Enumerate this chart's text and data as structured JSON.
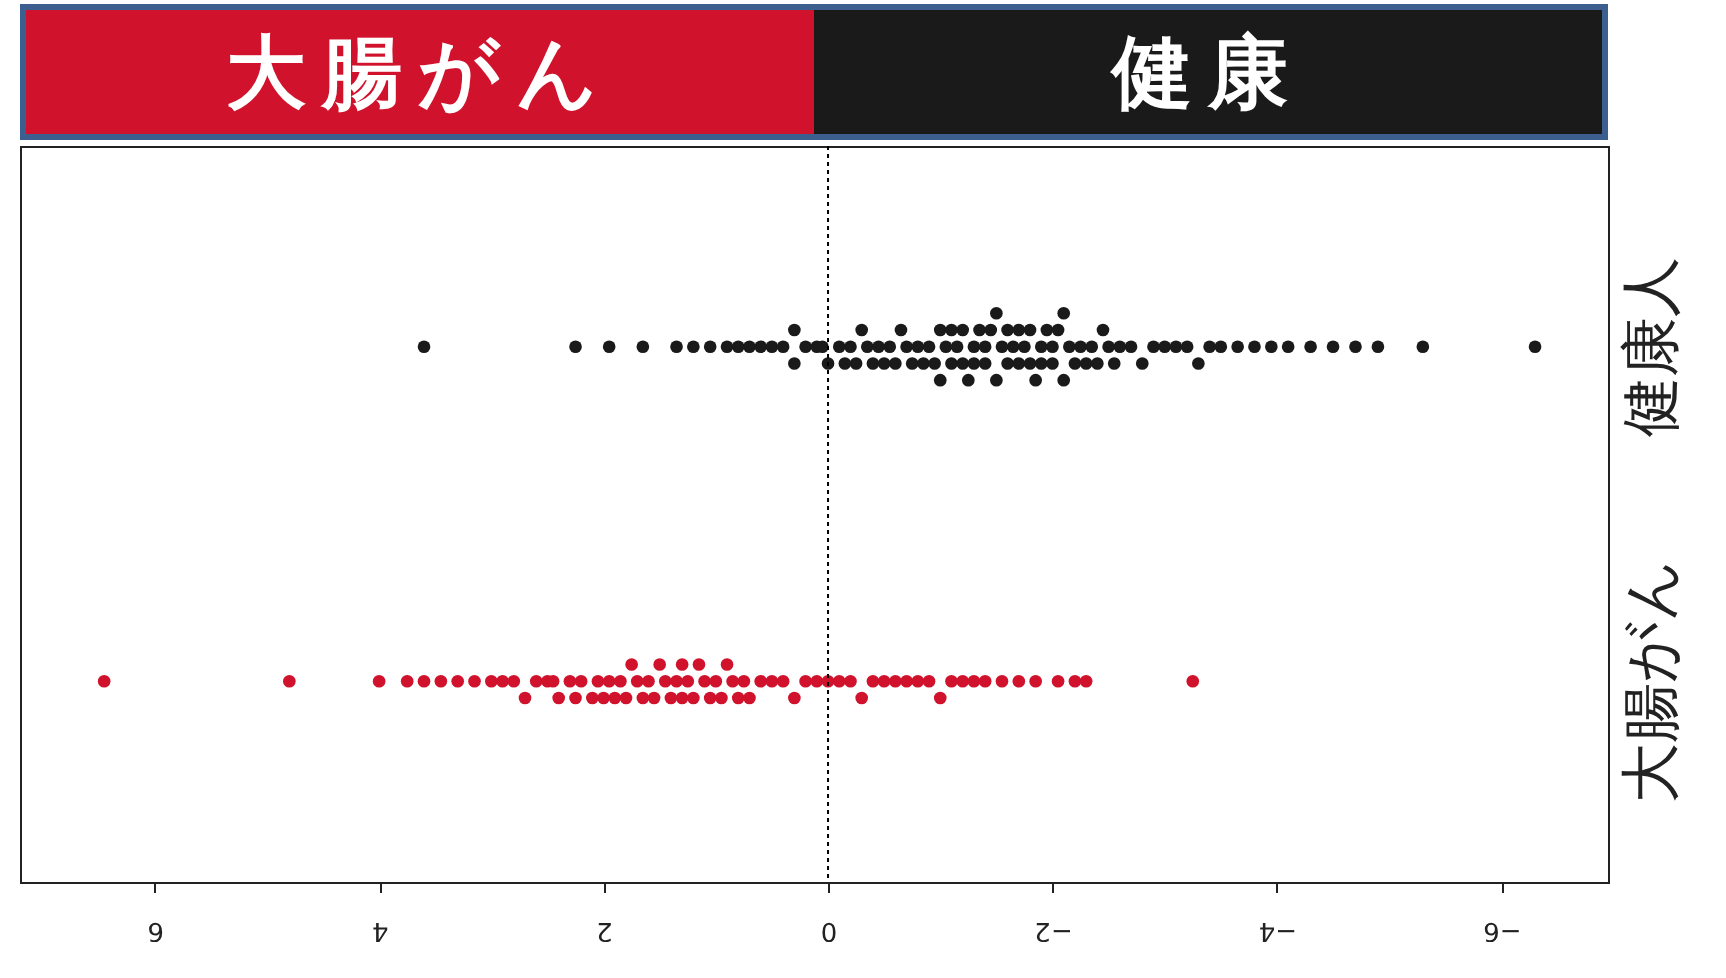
{
  "chart_data": {
    "type": "scatter",
    "orientation": "horizontal",
    "annotations": [
      "大腸がん",
      "健康"
    ],
    "categories": [
      "健康人",
      "大腸がん"
    ],
    "xlim": [
      7.2,
      -6.95
    ],
    "xticks": [
      6,
      4,
      2,
      0,
      -2,
      -4,
      -6
    ],
    "grid": false,
    "legend": false,
    "marker": "circle",
    "ref_lines": [
      {
        "axis": "x",
        "value": 0,
        "line_style": "dotted",
        "color": "#000000"
      }
    ],
    "series": [
      {
        "color": "#1a1a1a",
        "x": [
          "健康人",
          "健康人",
          "健康人",
          "健康人",
          "健康人",
          "健康人",
          "健康人",
          "健康人",
          "健康人",
          "健康人",
          "健康人",
          "健康人",
          "健康人",
          "健康人",
          "健康人",
          "健康人",
          "健康人",
          "健康人",
          "健康人",
          "健康人",
          "健康人",
          "健康人",
          "健康人",
          "健康人",
          "健康人",
          "健康人",
          "健康人",
          "健康人",
          "健康人",
          "健康人",
          "健康人",
          "健康人",
          "健康人",
          "健康人",
          "健康人",
          "健康人",
          "健康人",
          "健康人",
          "健康人",
          "健康人",
          "健康人",
          "健康人",
          "健康人",
          "健康人",
          "健康人",
          "健康人",
          "健康人",
          "健康人",
          "健康人",
          "健康人",
          "健康人",
          "健康人",
          "健康人",
          "健康人",
          "健康人",
          "健康人",
          "健康人",
          "健康人",
          "健康人",
          "健康人",
          "健康人",
          "健康人",
          "健康人",
          "健康人",
          "健康人",
          "健康人",
          "健康人",
          "健康人",
          "健康人",
          "健康人",
          "健康人",
          "健康人",
          "健康人",
          "健康人",
          "健康人",
          "健康人",
          "健康人",
          "健康人",
          "健康人",
          "健康人",
          "健康人",
          "健康人",
          "健康人",
          "健康人",
          "健康人",
          "健康人",
          "健康人",
          "健康人",
          "健康人",
          "健康人",
          "健康人",
          "健康人",
          "健康人",
          "健康人",
          "健康人",
          "健康人",
          "健康人",
          "健康人",
          "健康人",
          "健康人",
          "健康人"
        ],
        "values": [
          3.6,
          2.25,
          1.95,
          1.65,
          1.35,
          1.2,
          1.05,
          0.9,
          0.8,
          0.7,
          0.6,
          0.5,
          0.4,
          0.3,
          0.3,
          0.2,
          0.1,
          0.05,
          0.0,
          -0.1,
          -0.15,
          -0.2,
          -0.25,
          -0.3,
          -0.35,
          -0.4,
          -0.45,
          -0.5,
          -0.55,
          -0.6,
          -0.65,
          -0.7,
          -0.75,
          -0.8,
          -0.85,
          -0.9,
          -0.95,
          -1.0,
          -1.0,
          -1.05,
          -1.1,
          -1.1,
          -1.15,
          -1.2,
          -1.2,
          -1.25,
          -1.3,
          -1.3,
          -1.35,
          -1.4,
          -1.4,
          -1.45,
          -1.5,
          -1.5,
          -1.55,
          -1.6,
          -1.6,
          -1.65,
          -1.7,
          -1.7,
          -1.75,
          -1.8,
          -1.8,
          -1.85,
          -1.9,
          -1.9,
          -1.95,
          -2.0,
          -2.0,
          -2.05,
          -2.1,
          -2.1,
          -2.15,
          -2.2,
          -2.25,
          -2.3,
          -2.35,
          -2.4,
          -2.45,
          -2.5,
          -2.55,
          -2.6,
          -2.7,
          -2.8,
          -2.9,
          -3.0,
          -3.1,
          -3.2,
          -3.3,
          -3.4,
          -3.5,
          -3.65,
          -3.8,
          -3.95,
          -4.1,
          -4.3,
          -4.5,
          -4.7,
          -4.9,
          -5.3,
          -6.3
        ]
      },
      {
        "color": "#d0122d",
        "x": [
          "大腸がん",
          "大腸がん",
          "大腸がん",
          "大腸がん",
          "大腸がん",
          "大腸がん",
          "大腸がん",
          "大腸がん",
          "大腸がん",
          "大腸がん",
          "大腸がん",
          "大腸がん",
          "大腸がん",
          "大腸がん",
          "大腸がん",
          "大腸がん",
          "大腸がん",
          "大腸がん",
          "大腸がん",
          "大腸がん",
          "大腸がん",
          "大腸がん",
          "大腸がん",
          "大腸がん",
          "大腸がん",
          "大腸がん",
          "大腸がん",
          "大腸がん",
          "大腸がん",
          "大腸がん",
          "大腸がん",
          "大腸がん",
          "大腸がん",
          "大腸がん",
          "大腸がん",
          "大腸がん",
          "大腸がん",
          "大腸がん",
          "大腸がん",
          "大腸がん",
          "大腸がん",
          "大腸がん",
          "大腸がん",
          "大腸がん",
          "大腸がん",
          "大腸がん",
          "大腸がん",
          "大腸がん",
          "大腸がん",
          "大腸がん",
          "大腸がん",
          "大腸がん",
          "大腸がん",
          "大腸がん",
          "大腸がん",
          "大腸がん",
          "大腸がん",
          "大腸がん",
          "大腸がん",
          "大腸がん",
          "大腸がん",
          "大腸がん",
          "大腸がん",
          "大腸がん",
          "大腸がん",
          "大腸がん",
          "大腸がん",
          "大腸がん",
          "大腸がん",
          "大腸がん",
          "大腸がん",
          "大腸がん",
          "大腸がん",
          "大腸がん",
          "大腸がん",
          "大腸がん",
          "大腸がん"
        ],
        "values": [
          6.45,
          4.8,
          4.0,
          3.75,
          3.6,
          3.45,
          3.3,
          3.15,
          3.0,
          2.9,
          2.8,
          2.7,
          2.6,
          2.5,
          2.45,
          2.4,
          2.3,
          2.25,
          2.2,
          2.1,
          2.05,
          2.0,
          1.95,
          1.9,
          1.85,
          1.8,
          1.75,
          1.7,
          1.65,
          1.6,
          1.55,
          1.5,
          1.45,
          1.4,
          1.35,
          1.3,
          1.3,
          1.25,
          1.2,
          1.15,
          1.1,
          1.05,
          1.0,
          0.95,
          0.9,
          0.85,
          0.8,
          0.75,
          0.7,
          0.6,
          0.5,
          0.4,
          0.3,
          0.2,
          0.1,
          0.0,
          -0.1,
          -0.2,
          -0.3,
          -0.4,
          -0.5,
          -0.6,
          -0.7,
          -0.8,
          -0.9,
          -1.0,
          -1.1,
          -1.2,
          -1.3,
          -1.4,
          -1.55,
          -1.7,
          -1.85,
          -2.05,
          -2.2,
          -2.3,
          -3.25
        ]
      }
    ]
  }
}
